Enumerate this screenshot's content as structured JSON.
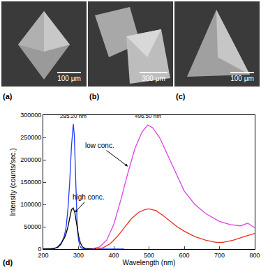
{
  "panels": [
    {
      "label": "(a)",
      "scale_bar": "100 μm"
    },
    {
      "label": "(b)",
      "scale_bar": "300 μm"
    },
    {
      "label": "(c)",
      "scale_bar": "100 μm"
    }
  ],
  "chart_data": {
    "type": "line",
    "panel_label": "(d)",
    "x_label": "Wavelength (nm)",
    "y_label": "Intensity (counts/sec.)",
    "xlim": [
      200,
      800
    ],
    "xticks": [
      200,
      300,
      400,
      500,
      600,
      700,
      800
    ],
    "ylim": [
      0,
      300000
    ],
    "yticks": [
      0,
      50000,
      100000,
      150000,
      200000,
      250000,
      300000
    ],
    "grid": false,
    "series": [
      {
        "color": "#1f3cff",
        "x": [
          200,
          220,
          240,
          250,
          260,
          265,
          270,
          275,
          280,
          283,
          285.2,
          288,
          290,
          293,
          296,
          300,
          305,
          310,
          320,
          340,
          360,
          380,
          400,
          420,
          430
        ],
        "values": [
          0,
          500,
          3000,
          10000,
          30000,
          50000,
          90000,
          150000,
          230000,
          270000,
          280000,
          255000,
          200000,
          120000,
          60000,
          20000,
          5000,
          1500,
          500,
          300,
          200,
          200,
          200,
          200,
          200
        ]
      },
      {
        "color": "#000000",
        "x": [
          200,
          230,
          240,
          250,
          260,
          265,
          270,
          275,
          280,
          285,
          290,
          295,
          300,
          305,
          310,
          315,
          320,
          330,
          340,
          360
        ],
        "values": [
          0,
          1000,
          4000,
          12000,
          25000,
          35000,
          50000,
          70000,
          88000,
          92000,
          80000,
          55000,
          30000,
          15000,
          6000,
          3000,
          1500,
          800,
          500,
          300
        ]
      },
      {
        "color": "#e040e8",
        "x": [
          340,
          360,
          380,
          400,
          420,
          440,
          460,
          480,
          496.5,
          510,
          530,
          550,
          570,
          600,
          630,
          660,
          700,
          730,
          760,
          780,
          800
        ],
        "values": [
          1000,
          5000,
          20000,
          55000,
          110000,
          170000,
          225000,
          262000,
          278000,
          272000,
          250000,
          215000,
          180000,
          130000,
          100000,
          80000,
          62000,
          55000,
          52000,
          58000,
          48000
        ]
      },
      {
        "color": "#e8301e",
        "x": [
          350,
          370,
          390,
          410,
          430,
          450,
          470,
          490,
          500,
          520,
          540,
          560,
          580,
          600,
          630,
          660,
          690,
          710,
          740,
          770,
          800
        ],
        "values": [
          500,
          3000,
          12000,
          28000,
          48000,
          68000,
          82000,
          89000,
          90000,
          86000,
          75000,
          62000,
          50000,
          40000,
          28000,
          20000,
          15000,
          15000,
          20000,
          28000,
          35000
        ]
      }
    ],
    "annotations": [
      {
        "text": "285.20 nm",
        "x": 285.2,
        "y": 287000
      },
      {
        "text": "496.50 nm",
        "x": 496.5,
        "y": 287000
      },
      {
        "text": "low conc.",
        "x": 440,
        "y": 185000,
        "arrow": true
      },
      {
        "text": "high conc.",
        "x": 290,
        "y": 82000,
        "arrow": true
      }
    ]
  }
}
